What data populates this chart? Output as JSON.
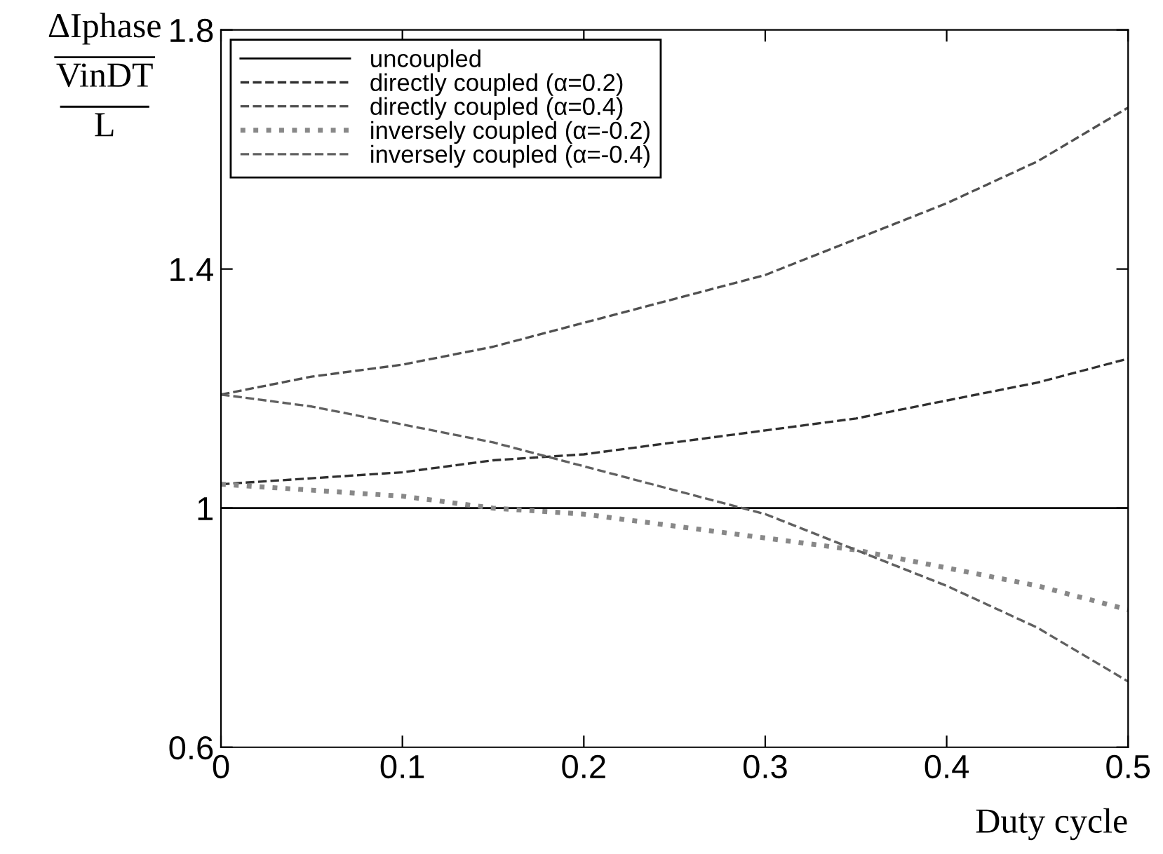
{
  "chart_data": {
    "type": "line",
    "xlabel": "Duty cycle",
    "ylabel": "ΔIphase\nVinDT\nL",
    "x": [
      0,
      0.05,
      0.1,
      0.15,
      0.2,
      0.25,
      0.3,
      0.35,
      0.4,
      0.45,
      0.5
    ],
    "series": [
      {
        "name": "uncoupled",
        "color": "#000000",
        "line_style": "solid",
        "values": [
          1,
          1,
          1,
          1,
          1,
          1,
          1,
          1,
          1,
          1,
          1
        ]
      },
      {
        "name": "directly coupled (α=0.2)",
        "color": "#303030",
        "line_style": "dashed",
        "values": [
          1.04,
          1.05,
          1.06,
          1.08,
          1.09,
          1.11,
          1.13,
          1.15,
          1.18,
          1.21,
          1.25
        ]
      },
      {
        "name": "directly coupled (α=0.4)",
        "color": "#505050",
        "line_style": "dashed",
        "values": [
          1.19,
          1.22,
          1.24,
          1.27,
          1.31,
          1.35,
          1.39,
          1.45,
          1.51,
          1.58,
          1.67
        ]
      },
      {
        "name": "inversely coupled (α=-0.2)",
        "color": "#888888",
        "line_style": "dotted",
        "values": [
          1.04,
          1.03,
          1.02,
          1.0,
          0.99,
          0.97,
          0.95,
          0.93,
          0.9,
          0.87,
          0.83
        ]
      },
      {
        "name": "inversely coupled (α=-0.4)",
        "color": "#606060",
        "line_style": "dashed",
        "values": [
          1.19,
          1.17,
          1.14,
          1.11,
          1.07,
          1.03,
          0.99,
          0.93,
          0.87,
          0.8,
          0.71
        ]
      }
    ],
    "xlim": [
      0,
      0.5
    ],
    "xticks": [
      0,
      0.1,
      0.2,
      0.3,
      0.4,
      0.5
    ],
    "ylim": [
      0.6,
      1.8
    ],
    "yticks": [
      0.6,
      {
        "value": 1.0,
        "label": "1"
      },
      1.4,
      1.8
    ],
    "grid": false,
    "legend": "top left"
  }
}
